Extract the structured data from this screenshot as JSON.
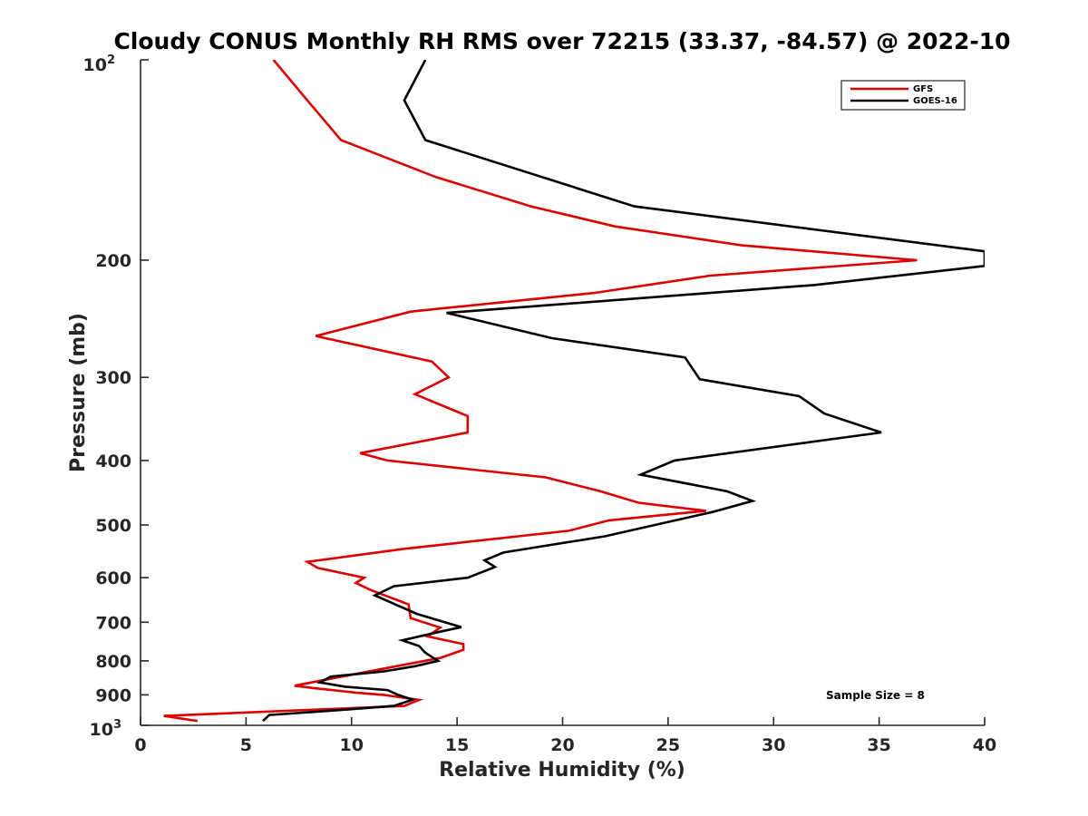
{
  "chart_data": {
    "type": "line",
    "title": "Cloudy CONUS Monthly RH RMS over 72215 (33.37, -84.57) @ 2022-10",
    "xlabel": "Relative Humidity (%)",
    "ylabel": "Pressure (mb)",
    "xlim": [
      0,
      40
    ],
    "ylim": [
      100,
      1000
    ],
    "y_scale": "log",
    "y_reversed": true,
    "x_ticks": [
      "0",
      "5",
      "10",
      "15",
      "20",
      "25",
      "30",
      "35",
      "40"
    ],
    "y_ticks": [
      {
        "value": 200,
        "label": "200"
      },
      {
        "value": 300,
        "label": "300"
      },
      {
        "value": 400,
        "label": "400"
      },
      {
        "value": 500,
        "label": "500"
      },
      {
        "value": 600,
        "label": "600"
      },
      {
        "value": 700,
        "label": "700"
      },
      {
        "value": 800,
        "label": "800"
      },
      {
        "value": 900,
        "label": "900"
      }
    ],
    "y_tick_extremes": {
      "top_base": "10",
      "top_exp": "2",
      "bottom_base": "10",
      "bottom_exp": "3"
    },
    "grid": false,
    "legend_position": "top-right",
    "annotation": "Sample Size = 8",
    "series": [
      {
        "name": "GFS",
        "color": "#dd0000",
        "points": [
          [
            6.3,
            100
          ],
          [
            7.9,
            115
          ],
          [
            9.5,
            132
          ],
          [
            14.0,
            150
          ],
          [
            18.5,
            166
          ],
          [
            22.5,
            178
          ],
          [
            28.5,
            190
          ],
          [
            36.8,
            200
          ],
          [
            27.0,
            211
          ],
          [
            21.5,
            224
          ],
          [
            12.8,
            239
          ],
          [
            8.3,
            260
          ],
          [
            13.8,
            284
          ],
          [
            14.6,
            300
          ],
          [
            13.0,
            318
          ],
          [
            15.5,
            343
          ],
          [
            15.5,
            363
          ],
          [
            10.4,
            390
          ],
          [
            11.7,
            400
          ],
          [
            19.2,
            424
          ],
          [
            21.8,
            445
          ],
          [
            23.6,
            463
          ],
          [
            26.8,
            476
          ],
          [
            22.2,
            492
          ],
          [
            20.3,
            510
          ],
          [
            12.5,
            543
          ],
          [
            7.9,
            568
          ],
          [
            8.4,
            580
          ],
          [
            10.6,
            600
          ],
          [
            10.2,
            611
          ],
          [
            10.9,
            626
          ],
          [
            12.7,
            658
          ],
          [
            12.8,
            690
          ],
          [
            14.2,
            713
          ],
          [
            13.6,
            735
          ],
          [
            15.3,
            755
          ],
          [
            15.3,
            770
          ],
          [
            14.2,
            792
          ],
          [
            11.7,
            820
          ],
          [
            9.1,
            850
          ],
          [
            7.3,
            872
          ],
          [
            8.2,
            879
          ],
          [
            10.2,
            893
          ],
          [
            11.5,
            900
          ],
          [
            13.2,
            916
          ],
          [
            12.5,
            935
          ],
          [
            1.1,
            968
          ],
          [
            2.7,
            985
          ]
        ]
      },
      {
        "name": "GOES-16",
        "color": "#000000",
        "points": [
          [
            13.5,
            100
          ],
          [
            12.5,
            115
          ],
          [
            13.5,
            132
          ],
          [
            23.4,
            166
          ],
          [
            40.0,
            194
          ],
          [
            40.0,
            204
          ],
          [
            31.9,
            218
          ],
          [
            14.5,
            240
          ],
          [
            19.5,
            262
          ],
          [
            25.8,
            280
          ],
          [
            26.5,
            302
          ],
          [
            31.2,
            320
          ],
          [
            32.4,
            340
          ],
          [
            35.1,
            363
          ],
          [
            25.3,
            400
          ],
          [
            23.7,
            420
          ],
          [
            27.8,
            445
          ],
          [
            29.0,
            460
          ],
          [
            27.1,
            478
          ],
          [
            22.0,
            520
          ],
          [
            17.2,
            550
          ],
          [
            16.3,
            565
          ],
          [
            16.8,
            578
          ],
          [
            15.5,
            600
          ],
          [
            12.0,
            618
          ],
          [
            11.1,
            638
          ],
          [
            13.1,
            680
          ],
          [
            15.2,
            712
          ],
          [
            14.3,
            722
          ],
          [
            12.4,
            745
          ],
          [
            13.2,
            760
          ],
          [
            13.5,
            778
          ],
          [
            14.1,
            800
          ],
          [
            13.0,
            815
          ],
          [
            11.5,
            830
          ],
          [
            9.0,
            845
          ],
          [
            8.5,
            862
          ],
          [
            9.7,
            875
          ],
          [
            11.7,
            885
          ],
          [
            12.2,
            900
          ],
          [
            12.9,
            915
          ],
          [
            12.0,
            935
          ],
          [
            9.2,
            950
          ],
          [
            6.1,
            965
          ],
          [
            5.8,
            985
          ]
        ]
      }
    ]
  }
}
